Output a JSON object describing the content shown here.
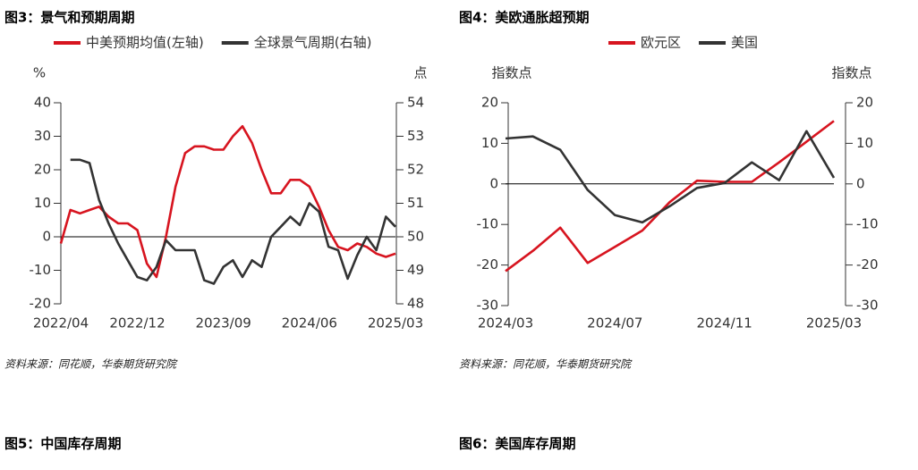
{
  "chart_data": [
    {
      "type": "line",
      "title": "图3：景气和预期周期",
      "categories": [
        "2022/04",
        null,
        null,
        null,
        null,
        null,
        null,
        null,
        "2022/12",
        null,
        null,
        null,
        null,
        null,
        null,
        null,
        null,
        "2023/09",
        null,
        null,
        null,
        null,
        null,
        null,
        null,
        null,
        "2024/06",
        null,
        null,
        null,
        null,
        null,
        null,
        null,
        null,
        "2025/03"
      ],
      "series": [
        {
          "name": "中美预期均值(左轴)",
          "color": "#d7141f",
          "axis": "y",
          "values": [
            -2,
            8,
            7,
            8,
            9,
            6,
            4,
            4,
            2,
            -8,
            -12,
            0,
            15,
            25,
            27,
            27,
            26,
            26,
            30,
            33,
            28,
            20,
            13,
            13,
            17,
            17,
            15,
            9,
            2,
            -3,
            -4,
            -2,
            -3,
            -5,
            -6,
            -5
          ]
        },
        {
          "name": "全球景气周期(右轴)",
          "color": "#333333",
          "axis": "y2",
          "values": [
            null,
            52.3,
            52.3,
            52.2,
            51.1,
            50.4,
            49.8,
            49.3,
            48.8,
            48.7,
            49.1,
            49.9,
            49.6,
            49.6,
            49.6,
            48.7,
            48.6,
            49.1,
            49.3,
            48.8,
            49.3,
            49.1,
            50.0,
            50.3,
            50.6,
            50.35,
            51.0,
            50.75,
            49.7,
            49.6,
            48.75,
            49.45,
            50.0,
            49.6,
            50.6,
            50.3
          ]
        }
      ],
      "ylabel": "%",
      "ylim": [
        -20,
        40
      ],
      "yticks": [
        -20,
        -10,
        0,
        10,
        20,
        30,
        40
      ],
      "y2label": "点",
      "y2lim": [
        48,
        54
      ],
      "y2ticks": [
        48,
        49,
        50,
        51,
        52,
        53,
        54
      ],
      "zero_line": true,
      "note": "资料来源：同花顺，华泰期货研究院"
    },
    {
      "type": "line",
      "title": "图4：美欧通胀超预期",
      "categories": [
        "2024/03",
        null,
        null,
        null,
        "2024/07",
        null,
        null,
        null,
        "2024/11",
        null,
        null,
        null,
        "2025/03"
      ],
      "series": [
        {
          "name": "欧元区",
          "color": "#d7141f",
          "axis": "y",
          "values": [
            -21.5,
            -16.5,
            -10.8,
            -19.5,
            -15.5,
            -11.5,
            -4.5,
            0.8,
            0.5,
            0.5,
            5.3,
            10.4,
            15.5
          ]
        },
        {
          "name": "美国",
          "color": "#333333",
          "axis": "y",
          "values": [
            11.2,
            11.7,
            8.4,
            -1.5,
            -7.7,
            -9.5,
            -5.5,
            -1.0,
            0.2,
            5.3,
            0.9,
            13.0,
            1.5
          ]
        }
      ],
      "ylabel": "指数点",
      "ylim": [
        -30,
        20
      ],
      "yticks": [
        -30,
        -20,
        -10,
        0,
        10,
        20
      ],
      "y2label": "指数点",
      "y2lim": [
        -30,
        20
      ],
      "y2ticks": [
        -30,
        -20,
        -10,
        0,
        10,
        20
      ],
      "zero_line": true,
      "note": "资料来源：同花顺，华泰期货研究院"
    }
  ],
  "figures": [
    {
      "title": "图5：中国库存周期"
    },
    {
      "title": "图6：美国库存周期"
    }
  ]
}
